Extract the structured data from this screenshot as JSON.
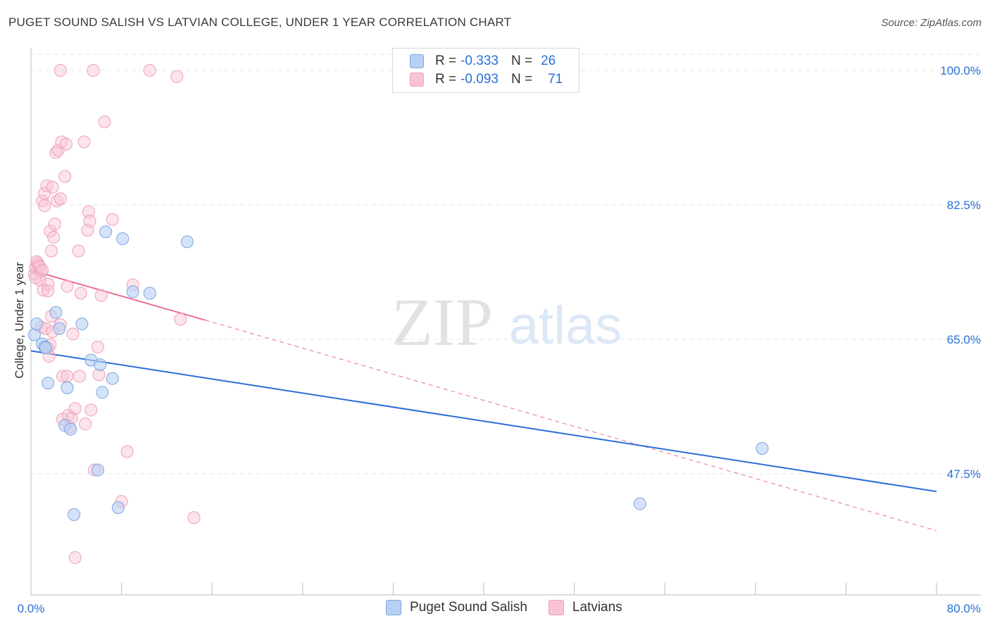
{
  "header": {
    "title": "PUGET SOUND SALISH VS LATVIAN COLLEGE, UNDER 1 YEAR CORRELATION CHART",
    "source": "Source: ZipAtlas.com"
  },
  "legend": {
    "rows": [
      {
        "r_label": "R =",
        "r_value": "-0.333",
        "n_label": "N =",
        "n_value": "26"
      },
      {
        "r_label": "R =",
        "r_value": "-0.093",
        "n_label": "N =",
        "n_value": "71"
      }
    ],
    "series": [
      "Puget Sound Salish",
      "Latvians"
    ]
  },
  "colors": {
    "blue_fill": "#b8d0f4",
    "blue_stroke": "#7ea6e0",
    "blue_line": "#2a6fd6",
    "pink_fill": "#f8c4d4",
    "pink_stroke": "#eea0b8",
    "pink_line": "#e8709a",
    "tick_text": "#2a6fd6",
    "grid": "#e6e6e6"
  },
  "watermark": {
    "zip": "ZIP",
    "atlas": "atlas"
  },
  "chart_data": {
    "type": "scatter",
    "title": "PUGET SOUND SALISH VS LATVIAN COLLEGE, UNDER 1 YEAR CORRELATION CHART",
    "xlabel": "",
    "ylabel": "College, Under 1 year",
    "xlim": [
      0,
      80
    ],
    "ylim": [
      30,
      100
    ],
    "x_tick_labels": [
      "0.0%",
      "80.0%"
    ],
    "y_ticks": [
      100,
      82.5,
      65,
      47.5
    ],
    "y_tick_labels": [
      "100.0%",
      "82.5%",
      "65.0%",
      "47.5%"
    ],
    "grid": true,
    "legend_position": "top-center",
    "series": [
      {
        "name": "Puget Sound Salish",
        "r": -0.333,
        "n": 26,
        "trend": {
          "x": [
            0,
            80
          ],
          "y": [
            63.5,
            45.2
          ]
        },
        "points": [
          [
            0.3,
            65.6
          ],
          [
            0.5,
            67.0
          ],
          [
            1.0,
            64.4
          ],
          [
            1.2,
            64.0
          ],
          [
            1.5,
            59.3
          ],
          [
            2.2,
            68.5
          ],
          [
            2.5,
            66.4
          ],
          [
            3.0,
            53.8
          ],
          [
            3.2,
            58.7
          ],
          [
            3.5,
            53.3
          ],
          [
            3.8,
            42.2
          ],
          [
            4.5,
            67.0
          ],
          [
            5.3,
            62.3
          ],
          [
            5.9,
            48.0
          ],
          [
            6.1,
            61.7
          ],
          [
            6.3,
            58.1
          ],
          [
            6.6,
            79.0
          ],
          [
            7.2,
            59.9
          ],
          [
            7.7,
            43.1
          ],
          [
            8.1,
            78.1
          ],
          [
            9.0,
            71.2
          ],
          [
            10.5,
            71.0
          ],
          [
            13.8,
            77.7
          ],
          [
            53.8,
            43.6
          ],
          [
            64.6,
            50.8
          ],
          [
            1.3,
            63.9
          ]
        ]
      },
      {
        "name": "Latvians",
        "r": -0.093,
        "n": 71,
        "trend": {
          "x": [
            0,
            15.4
          ],
          "y": [
            74.0,
            67.5
          ]
        },
        "trend_extended": {
          "x": [
            15.4,
            80
          ],
          "y": [
            67.5,
            40.1
          ]
        },
        "points": [
          [
            0.3,
            73.5
          ],
          [
            0.4,
            74.3
          ],
          [
            0.5,
            75.1
          ],
          [
            0.6,
            74.9
          ],
          [
            0.7,
            74.6
          ],
          [
            0.8,
            74.4
          ],
          [
            0.9,
            73.8
          ],
          [
            1.0,
            74.0
          ],
          [
            0.8,
            72.7
          ],
          [
            0.9,
            66.6
          ],
          [
            1.1,
            71.4
          ],
          [
            1.3,
            66.4
          ],
          [
            1.0,
            83.0
          ],
          [
            1.2,
            84.0
          ],
          [
            1.2,
            82.4
          ],
          [
            1.4,
            85.0
          ],
          [
            1.5,
            63.9
          ],
          [
            1.5,
            72.2
          ],
          [
            1.5,
            71.3
          ],
          [
            1.6,
            62.8
          ],
          [
            1.7,
            79.1
          ],
          [
            1.8,
            76.5
          ],
          [
            1.8,
            68.0
          ],
          [
            1.9,
            66.0
          ],
          [
            1.9,
            84.8
          ],
          [
            2.0,
            78.3
          ],
          [
            2.1,
            80.0
          ],
          [
            2.2,
            89.3
          ],
          [
            2.3,
            83.0
          ],
          [
            2.4,
            89.6
          ],
          [
            2.6,
            66.9
          ],
          [
            2.6,
            83.3
          ],
          [
            2.7,
            90.7
          ],
          [
            2.8,
            54.6
          ],
          [
            2.8,
            60.2
          ],
          [
            3.0,
            86.2
          ],
          [
            3.1,
            90.4
          ],
          [
            3.2,
            71.9
          ],
          [
            3.2,
            60.2
          ],
          [
            3.3,
            55.1
          ],
          [
            3.4,
            53.6
          ],
          [
            3.6,
            54.8
          ],
          [
            3.7,
            65.7
          ],
          [
            3.9,
            56.0
          ],
          [
            4.2,
            76.5
          ],
          [
            4.3,
            60.2
          ],
          [
            4.4,
            71.0
          ],
          [
            4.7,
            90.7
          ],
          [
            4.8,
            54.0
          ],
          [
            5.0,
            79.2
          ],
          [
            5.1,
            81.6
          ],
          [
            5.2,
            80.4
          ],
          [
            5.3,
            55.8
          ],
          [
            5.6,
            48.0
          ],
          [
            5.9,
            64.0
          ],
          [
            6.0,
            60.4
          ],
          [
            6.2,
            70.7
          ],
          [
            6.5,
            93.3
          ],
          [
            7.2,
            80.6
          ],
          [
            8.0,
            43.9
          ],
          [
            8.5,
            50.4
          ],
          [
            9.0,
            72.1
          ],
          [
            10.5,
            100.0
          ],
          [
            12.9,
            99.2
          ],
          [
            13.2,
            67.6
          ],
          [
            14.4,
            41.8
          ],
          [
            3.9,
            36.6
          ],
          [
            2.6,
            100.0
          ],
          [
            5.5,
            100.0
          ],
          [
            0.4,
            73.0
          ],
          [
            1.7,
            64.3
          ]
        ]
      }
    ]
  }
}
